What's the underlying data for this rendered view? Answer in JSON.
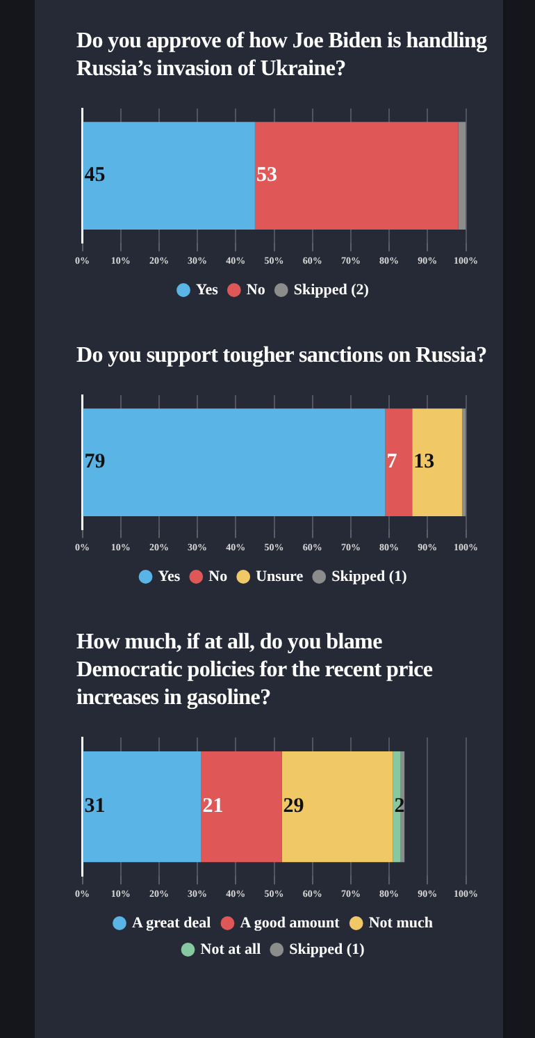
{
  "chart_data": [
    {
      "type": "bar",
      "orientation": "horizontal",
      "stacked": true,
      "title": "Do you approve of how Joe Biden is handling Russia’s invasion of Ukraine?",
      "categories": [
        null
      ],
      "series": [
        {
          "name": "Yes",
          "color": "#5ab4e6",
          "values": [
            45
          ],
          "value_labels": [
            "45"
          ]
        },
        {
          "name": "No",
          "color": "#e05757",
          "values": [
            53
          ],
          "value_labels": [
            "53"
          ]
        },
        {
          "name": "Skipped (2)",
          "color": "#8c8c8c",
          "values": [
            2
          ],
          "value_labels": [
            null
          ]
        }
      ],
      "xlim": [
        0,
        100
      ],
      "xticks": [
        {
          "value": 0,
          "label": "0%"
        },
        {
          "value": 10,
          "label": "10%"
        },
        {
          "value": 20,
          "label": "20%"
        },
        {
          "value": 30,
          "label": "30%"
        },
        {
          "value": 40,
          "label": "40%"
        },
        {
          "value": 50,
          "label": "50%"
        },
        {
          "value": 60,
          "label": "60%"
        },
        {
          "value": 70,
          "label": "70%"
        },
        {
          "value": 80,
          "label": "80%"
        },
        {
          "value": 90,
          "label": "90%"
        },
        {
          "value": 100,
          "label": "100%"
        }
      ],
      "grid": "x",
      "legend": "bottom",
      "marker": "circle"
    },
    {
      "type": "bar",
      "orientation": "horizontal",
      "stacked": true,
      "title": "Do you support tougher sanctions on Russia?",
      "categories": [
        null
      ],
      "series": [
        {
          "name": "Yes",
          "color": "#5ab4e6",
          "values": [
            79
          ],
          "value_labels": [
            "79"
          ]
        },
        {
          "name": "No",
          "color": "#e05757",
          "values": [
            7
          ],
          "value_labels": [
            "7"
          ]
        },
        {
          "name": "Unsure",
          "color": "#f0c865",
          "values": [
            13
          ],
          "value_labels": [
            "13"
          ]
        },
        {
          "name": "Skipped (1)",
          "color": "#8c8c8c",
          "values": [
            1
          ],
          "value_labels": [
            null
          ]
        }
      ],
      "xlim": [
        0,
        100
      ],
      "xticks": [
        {
          "value": 0,
          "label": "0%"
        },
        {
          "value": 10,
          "label": "10%"
        },
        {
          "value": 20,
          "label": "20%"
        },
        {
          "value": 30,
          "label": "30%"
        },
        {
          "value": 40,
          "label": "40%"
        },
        {
          "value": 50,
          "label": "50%"
        },
        {
          "value": 60,
          "label": "60%"
        },
        {
          "value": 70,
          "label": "70%"
        },
        {
          "value": 80,
          "label": "80%"
        },
        {
          "value": 90,
          "label": "90%"
        },
        {
          "value": 100,
          "label": "100%"
        }
      ],
      "grid": "x",
      "legend": "bottom",
      "marker": "circle"
    },
    {
      "type": "bar",
      "orientation": "horizontal",
      "stacked": true,
      "title": "How much, if at all, do you blame Democratic policies for the recent price increases in gasoline?",
      "categories": [
        null
      ],
      "series": [
        {
          "name": "A great deal",
          "color": "#5ab4e6",
          "values": [
            31
          ],
          "value_labels": [
            "31"
          ]
        },
        {
          "name": "A good amount",
          "color": "#e05757",
          "values": [
            21
          ],
          "value_labels": [
            "21"
          ]
        },
        {
          "name": "Not much",
          "color": "#f0c865",
          "values": [
            29
          ],
          "value_labels": [
            "29"
          ]
        },
        {
          "name": "Not at all",
          "color": "#86c9a0",
          "values": [
            2
          ],
          "value_labels": [
            "2"
          ]
        },
        {
          "name": "Skipped (1)",
          "color": "#8c8c8c",
          "values": [
            1
          ],
          "value_labels": [
            null
          ]
        }
      ],
      "xlim": [
        0,
        100
      ],
      "xticks": [
        {
          "value": 0,
          "label": "0%"
        },
        {
          "value": 10,
          "label": "10%"
        },
        {
          "value": 20,
          "label": "20%"
        },
        {
          "value": 30,
          "label": "30%"
        },
        {
          "value": 40,
          "label": "40%"
        },
        {
          "value": 50,
          "label": "50%"
        },
        {
          "value": 60,
          "label": "60%"
        },
        {
          "value": 70,
          "label": "70%"
        },
        {
          "value": 80,
          "label": "80%"
        },
        {
          "value": 90,
          "label": "90%"
        },
        {
          "value": 100,
          "label": "100%"
        }
      ],
      "grid": "x",
      "legend": "bottom",
      "marker": "circle"
    }
  ]
}
